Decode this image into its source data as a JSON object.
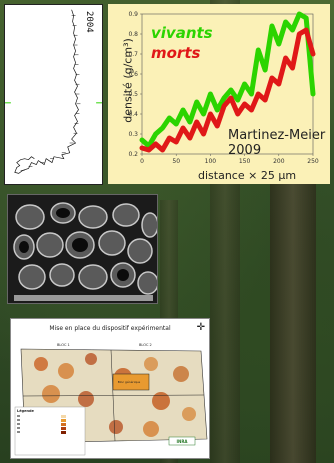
{
  "ring_profile": {
    "year_label": "2004"
  },
  "density_chart": {
    "legend_vivants": "vivants",
    "legend_morts": "morts",
    "citation_line1": "Martinez-Meier",
    "citation_line2": "2009",
    "ylabel": "densité (g/cm³)",
    "xlabel": "distance × 25 µm",
    "colors": {
      "vivants": "#2bd400",
      "morts": "#e01818",
      "background": "#fbf1b7"
    }
  },
  "chart_data": {
    "type": "line",
    "xlabel": "distance × 25 µm",
    "ylabel": "densité (g/cm³)",
    "xlim": [
      0,
      250
    ],
    "ylim": [
      0.2,
      0.9
    ],
    "x_ticks": [
      "0",
      "50",
      "100",
      "150",
      "200",
      "250"
    ],
    "y_ticks": [
      "0.2",
      "0.3",
      "0.4",
      "0.5",
      "0.6",
      "0.7",
      "0.8",
      "0.9"
    ],
    "series": [
      {
        "name": "vivants",
        "x": [
          0,
          10,
          20,
          30,
          40,
          50,
          60,
          70,
          80,
          90,
          100,
          110,
          120,
          130,
          140,
          150,
          160,
          170,
          180,
          190,
          200,
          210,
          220,
          230,
          240,
          250
        ],
        "values": [
          0.27,
          0.24,
          0.3,
          0.33,
          0.38,
          0.35,
          0.42,
          0.36,
          0.46,
          0.4,
          0.5,
          0.42,
          0.48,
          0.52,
          0.47,
          0.55,
          0.5,
          0.72,
          0.62,
          0.84,
          0.75,
          0.86,
          0.82,
          0.9,
          0.88,
          0.5
        ]
      },
      {
        "name": "morts",
        "x": [
          0,
          10,
          20,
          30,
          40,
          50,
          60,
          70,
          80,
          90,
          100,
          110,
          120,
          130,
          140,
          150,
          160,
          170,
          180,
          190,
          200,
          210,
          220,
          230,
          240,
          250
        ],
        "values": [
          0.23,
          0.22,
          0.25,
          0.22,
          0.28,
          0.26,
          0.33,
          0.28,
          0.36,
          0.3,
          0.4,
          0.34,
          0.44,
          0.48,
          0.4,
          0.45,
          0.42,
          0.5,
          0.47,
          0.58,
          0.55,
          0.68,
          0.63,
          0.8,
          0.82,
          0.7
        ]
      }
    ]
  },
  "map": {
    "title": "Mise en place du dispositif expérimental",
    "bloc1": "BLOC 1",
    "bloc2": "BLOC 2",
    "center_label": "Bloc générique",
    "legend_title": "Légende",
    "north_symbol": "✛",
    "inra_label": "INRA"
  }
}
